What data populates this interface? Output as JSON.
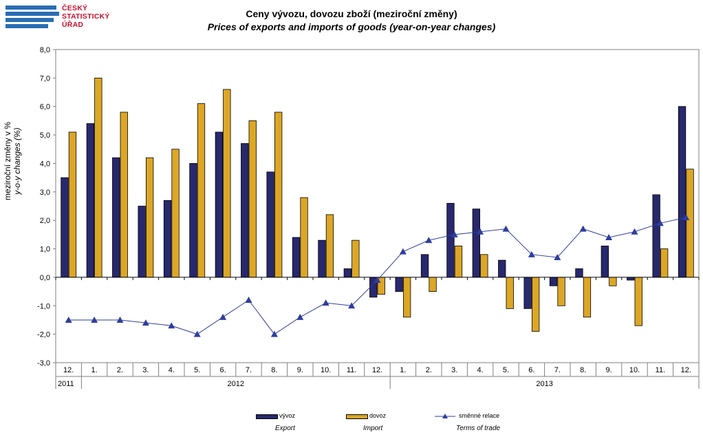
{
  "header": {
    "logo_lines": [
      "ČESKÝ",
      "STATISTICKÝ",
      "ÚŘAD"
    ],
    "title_cz": "Ceny vývozu, dovozu zboží (meziroční změny)",
    "title_en": "Prices of exports and imports of goods (year-on-year  changes)"
  },
  "axis": {
    "ylabel_cz": "meziroční změny v %",
    "ylabel_en": "y-o-y changes (%)"
  },
  "legend": {
    "items": [
      {
        "label": "vývoz",
        "label_en": "Export"
      },
      {
        "label": "dovoz",
        "label_en": "Import"
      },
      {
        "label": "směnné relace",
        "label_en": "Terms of trade"
      }
    ]
  },
  "colors": {
    "export": "#28286e",
    "import": "#dca626",
    "terms": "#2e3d9e",
    "axis": "#7f7f7f"
  },
  "chart_data": {
    "type": "bar",
    "categories": [
      "12.",
      "1.",
      "2.",
      "3.",
      "4.",
      "5.",
      "6.",
      "7.",
      "8.",
      "9.",
      "10.",
      "11.",
      "12.",
      "1.",
      "2.",
      "3.",
      "4.",
      "5.",
      "6.",
      "7.",
      "8.",
      "9.",
      "10.",
      "11.",
      "12."
    ],
    "year_groups": [
      {
        "label": "2011",
        "start": 0,
        "end": 0
      },
      {
        "label": "2012",
        "start": 1,
        "end": 12
      },
      {
        "label": "2013",
        "start": 13,
        "end": 24
      }
    ],
    "series": [
      {
        "name": "vývoz",
        "type": "bar",
        "values": [
          3.5,
          5.4,
          4.2,
          2.5,
          2.7,
          4.0,
          5.1,
          4.7,
          3.7,
          1.4,
          1.3,
          0.3,
          -0.7,
          -0.5,
          0.8,
          2.6,
          2.4,
          0.6,
          -1.1,
          -0.3,
          0.3,
          1.1,
          -0.1,
          2.9,
          6.0
        ]
      },
      {
        "name": "dovoz",
        "type": "bar",
        "values": [
          5.1,
          7.0,
          5.8,
          4.2,
          4.5,
          6.1,
          6.6,
          5.5,
          5.8,
          2.8,
          2.2,
          1.3,
          -0.6,
          -1.4,
          -0.5,
          1.1,
          0.8,
          -1.1,
          -1.9,
          -1.0,
          -1.4,
          -0.3,
          -1.7,
          1.0,
          3.8
        ]
      },
      {
        "name": "směnné relace",
        "type": "line",
        "values": [
          -1.5,
          -1.5,
          -1.5,
          -1.6,
          -1.7,
          -2.0,
          -1.4,
          -0.8,
          -2.0,
          -1.4,
          -0.9,
          -1.0,
          -0.1,
          0.9,
          1.3,
          1.5,
          1.6,
          1.7,
          0.8,
          0.7,
          1.7,
          1.4,
          1.6,
          1.9,
          2.1
        ]
      }
    ],
    "ylim": [
      -3.0,
      8.0
    ],
    "yticks": [
      "8,0",
      "7,0",
      "6,0",
      "5,0",
      "4,0",
      "3,0",
      "2,0",
      "1,0",
      "0,0",
      "-1,0",
      "-2,0",
      "-3,0"
    ],
    "grid": false,
    "legend_position": "bottom"
  }
}
